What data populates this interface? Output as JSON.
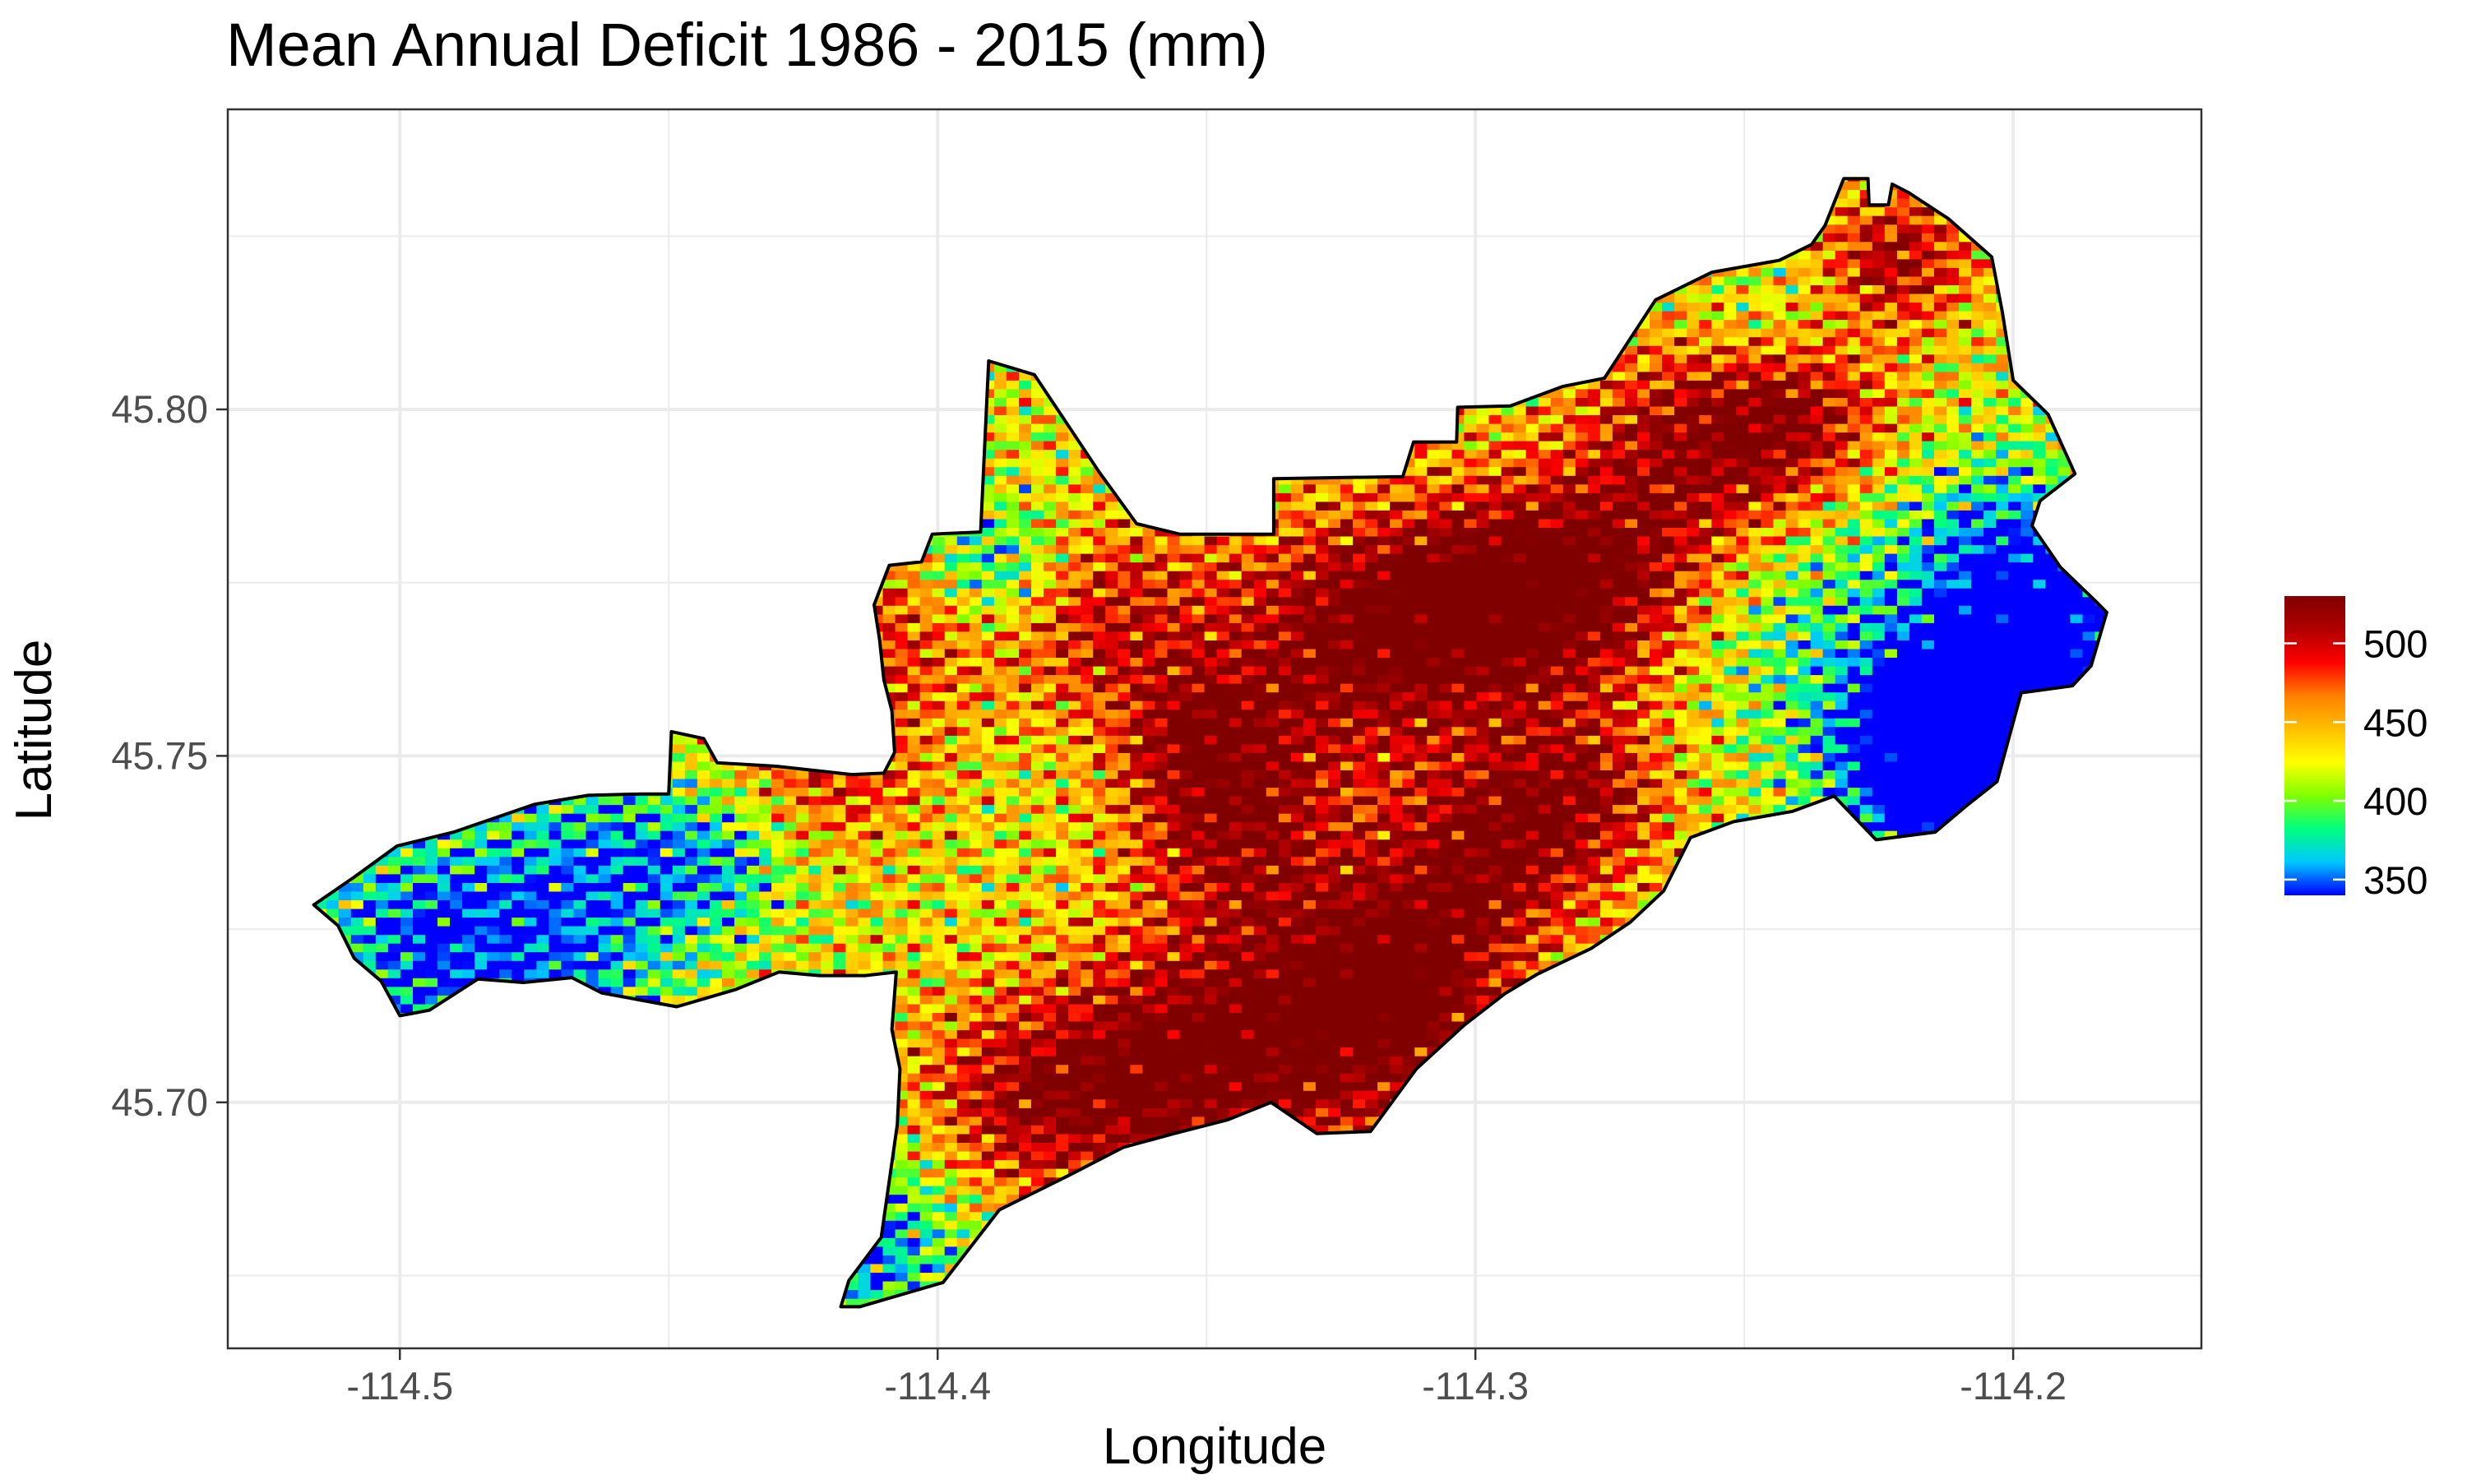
{
  "chart_data": {
    "type": "heatmap",
    "title": "Mean Annual Deficit 1986 - 2015 (mm)",
    "xlabel": "Longitude",
    "ylabel": "Latitude",
    "xlim": [
      -114.532,
      -114.165
    ],
    "ylim": [
      45.6645,
      45.8433
    ],
    "x_ticks": [
      -114.5,
      -114.4,
      -114.3,
      -114.2
    ],
    "x_tick_labels": [
      "-114.5",
      "-114.4",
      "-114.3",
      "-114.2"
    ],
    "y_ticks": [
      45.7,
      45.75,
      45.8
    ],
    "y_tick_labels": [
      "45.70",
      "45.75",
      "45.80"
    ],
    "grid": true,
    "legend": {
      "position": "right",
      "min": 340,
      "max": 530,
      "breaks": [
        350,
        400,
        450,
        500
      ],
      "break_labels": [
        "350",
        "400",
        "450",
        "500"
      ],
      "colors": [
        "#0000ff",
        "#00c8ff",
        "#00ff7f",
        "#7fff00",
        "#ffff00",
        "#ffbf00",
        "#ff8000",
        "#ff0000",
        "#b00000",
        "#800000"
      ]
    },
    "boundary": [
      [
        -114.516,
        45.7285
      ],
      [
        -114.5085,
        45.7325
      ],
      [
        -114.5005,
        45.737
      ],
      [
        -114.49,
        45.739
      ],
      [
        -114.475,
        45.743
      ],
      [
        -114.465,
        45.7443
      ],
      [
        -114.455,
        45.7445
      ],
      [
        -114.45,
        45.7445
      ],
      [
        -114.4495,
        45.7535
      ],
      [
        -114.4435,
        45.7525
      ],
      [
        -114.441,
        45.749
      ],
      [
        -114.43,
        45.7485
      ],
      [
        -114.416,
        45.7473
      ],
      [
        -114.41,
        45.7475
      ],
      [
        -114.408,
        45.7505
      ],
      [
        -114.4085,
        45.7565
      ],
      [
        -114.41,
        45.761
      ],
      [
        -114.4108,
        45.7668
      ],
      [
        -114.4118,
        45.7718
      ],
      [
        -114.409,
        45.7775
      ],
      [
        -114.403,
        45.778
      ],
      [
        -114.401,
        45.782
      ],
      [
        -114.392,
        45.7823
      ],
      [
        -114.3905,
        45.807
      ],
      [
        -114.382,
        45.805
      ],
      [
        -114.376,
        45.798
      ],
      [
        -114.37,
        45.791
      ],
      [
        -114.363,
        45.7835
      ],
      [
        -114.355,
        45.782
      ],
      [
        -114.3375,
        45.782
      ],
      [
        -114.3375,
        45.79
      ],
      [
        -114.3135,
        45.7903
      ],
      [
        -114.3115,
        45.7953
      ],
      [
        -114.3035,
        45.7953
      ],
      [
        -114.3033,
        45.8003
      ],
      [
        -114.2935,
        45.8005
      ],
      [
        -114.2838,
        45.8033
      ],
      [
        -114.276,
        45.8045
      ],
      [
        -114.2665,
        45.8158
      ],
      [
        -114.256,
        45.8198
      ],
      [
        -114.2435,
        45.8215
      ],
      [
        -114.2375,
        45.8238
      ],
      [
        -114.235,
        45.8265
      ],
      [
        -114.2315,
        45.8333
      ],
      [
        -114.227,
        45.8333
      ],
      [
        -114.2268,
        45.8295
      ],
      [
        -114.2232,
        45.8295
      ],
      [
        -114.2225,
        45.8325
      ],
      [
        -114.2195,
        45.8313
      ],
      [
        -114.212,
        45.8275
      ],
      [
        -114.204,
        45.822
      ],
      [
        -114.202,
        45.814
      ],
      [
        -114.2,
        45.8042
      ],
      [
        -114.1935,
        45.7993
      ],
      [
        -114.1885,
        45.7907
      ],
      [
        -114.195,
        45.7868
      ],
      [
        -114.1965,
        45.7832
      ],
      [
        -114.1912,
        45.7772
      ],
      [
        -114.1845,
        45.7722
      ],
      [
        -114.1826,
        45.7707
      ],
      [
        -114.1855,
        45.763
      ],
      [
        -114.189,
        45.7601
      ],
      [
        -114.1985,
        45.7591
      ],
      [
        -114.203,
        45.7463
      ],
      [
        -114.209,
        45.7426
      ],
      [
        -114.2145,
        45.739
      ],
      [
        -114.2255,
        45.7379
      ],
      [
        -114.2333,
        45.7442
      ],
      [
        -114.241,
        45.742
      ],
      [
        -114.252,
        45.7405
      ],
      [
        -114.26,
        45.7382
      ],
      [
        -114.265,
        45.7305
      ],
      [
        -114.2712,
        45.726
      ],
      [
        -114.2785,
        45.7222
      ],
      [
        -114.2885,
        45.7185
      ],
      [
        -114.2945,
        45.7157
      ],
      [
        -114.302,
        45.7112
      ],
      [
        -114.311,
        45.7048
      ],
      [
        -114.3195,
        45.6958
      ],
      [
        -114.3295,
        45.6955
      ],
      [
        -114.338,
        45.7
      ],
      [
        -114.346,
        45.6975
      ],
      [
        -114.356,
        45.6955
      ],
      [
        -114.3655,
        45.6935
      ],
      [
        -114.3755,
        45.6895
      ],
      [
        -114.3885,
        45.6845
      ],
      [
        -114.399,
        45.674
      ],
      [
        -114.4145,
        45.6705
      ],
      [
        -114.418,
        45.6705
      ],
      [
        -114.4165,
        45.6743
      ],
      [
        -114.4105,
        45.6805
      ],
      [
        -114.4075,
        45.6968
      ],
      [
        -114.407,
        45.7048
      ],
      [
        -114.4085,
        45.7105
      ],
      [
        -114.4077,
        45.7188
      ],
      [
        -114.4135,
        45.7183
      ],
      [
        -114.422,
        45.7183
      ],
      [
        -114.4295,
        45.7188
      ],
      [
        -114.4375,
        45.7163
      ],
      [
        -114.4485,
        45.7138
      ],
      [
        -114.4555,
        45.7148
      ],
      [
        -114.4625,
        45.7158
      ],
      [
        -114.468,
        45.718
      ],
      [
        -114.477,
        45.7173
      ],
      [
        -114.4855,
        45.7178
      ],
      [
        -114.4945,
        45.7133
      ],
      [
        -114.5,
        45.7125
      ],
      [
        -114.5035,
        45.7175
      ],
      [
        -114.5085,
        45.7208
      ],
      [
        -114.5115,
        45.7255
      ],
      [
        -114.516,
        45.7285
      ]
    ],
    "hotspots": [
      [
        -114.326,
        45.766,
        1.0,
        0.018
      ],
      [
        -114.3,
        45.772,
        1.0,
        0.016
      ],
      [
        -114.278,
        45.775,
        1.0,
        0.015
      ],
      [
        -114.332,
        45.71,
        1.0,
        0.02
      ],
      [
        -114.36,
        45.705,
        0.85,
        0.016
      ],
      [
        -114.385,
        45.7,
        0.8,
        0.015
      ],
      [
        -114.345,
        45.74,
        0.9,
        0.014
      ],
      [
        -114.298,
        45.736,
        0.95,
        0.014
      ],
      [
        -114.258,
        45.795,
        0.95,
        0.016
      ],
      [
        -114.24,
        45.8,
        0.85,
        0.012
      ],
      [
        -114.222,
        45.822,
        0.9,
        0.01
      ],
      [
        -114.37,
        45.77,
        0.75,
        0.014
      ],
      [
        -114.42,
        45.75,
        0.6,
        0.014
      ],
      [
        -114.314,
        45.718,
        0.95,
        0.014
      ],
      [
        -114.405,
        45.77,
        0.55,
        0.012
      ],
      [
        -114.28,
        45.745,
        0.8,
        0.012
      ],
      [
        -114.352,
        45.753,
        0.7,
        0.01
      ],
      [
        -114.205,
        45.745,
        -1.3,
        0.016
      ],
      [
        -114.195,
        45.765,
        -1.1,
        0.014
      ],
      [
        -114.215,
        45.752,
        -1.0,
        0.013
      ],
      [
        -114.2,
        45.78,
        -0.7,
        0.014
      ],
      [
        -114.39,
        45.777,
        -0.8,
        0.01
      ],
      [
        -114.48,
        45.72,
        -0.8,
        0.02
      ],
      [
        -114.415,
        45.68,
        -0.8,
        0.016
      ],
      [
        -114.46,
        45.735,
        -0.55,
        0.015
      ],
      [
        -114.44,
        45.735,
        -0.5,
        0.01
      ],
      [
        -114.235,
        45.77,
        -0.45,
        0.02
      ],
      [
        -114.245,
        45.81,
        -0.4,
        0.012
      ],
      [
        -114.5,
        45.725,
        -0.45,
        0.013
      ]
    ]
  }
}
